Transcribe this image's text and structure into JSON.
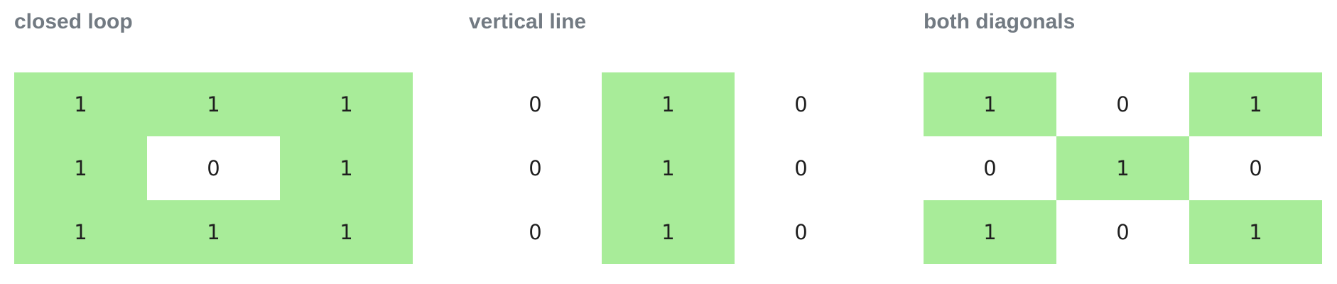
{
  "highlight_color": "#a8ec99",
  "title_color": "#727a82",
  "panels": [
    {
      "title": "closed loop",
      "grid": [
        [
          "1",
          "1",
          "1"
        ],
        [
          "1",
          "0",
          "1"
        ],
        [
          "1",
          "1",
          "1"
        ]
      ]
    },
    {
      "title": "vertical line",
      "grid": [
        [
          "0",
          "1",
          "0"
        ],
        [
          "0",
          "1",
          "0"
        ],
        [
          "0",
          "1",
          "0"
        ]
      ]
    },
    {
      "title": "both diagonals",
      "grid": [
        [
          "1",
          "0",
          "1"
        ],
        [
          "0",
          "1",
          "0"
        ],
        [
          "1",
          "0",
          "1"
        ]
      ]
    }
  ]
}
